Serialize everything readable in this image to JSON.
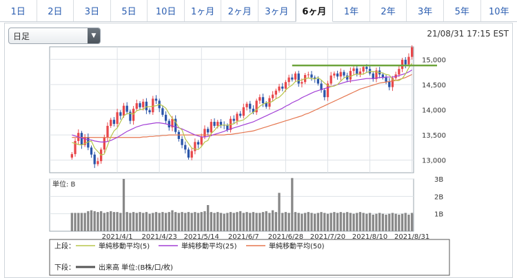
{
  "tabs": [
    "1日",
    "2日",
    "3日",
    "5日",
    "10日",
    "1ヶ月",
    "2ヶ月",
    "3ヶ月",
    "6ヶ月",
    "1年",
    "2年",
    "3年",
    "5年",
    "10年"
  ],
  "active_tab": "6ヶ月",
  "selector": {
    "value": "日足"
  },
  "timestamp": "21/08/31 17:15 EST",
  "legend": {
    "upper_label": "上段：",
    "lower_label": "下段：",
    "ma5": "単純移動平均(5)",
    "ma25": "単純移動平均(25)",
    "ma50": "単純移動平均(50)",
    "volume": "出来高 単位:(B株/口/枚)"
  },
  "colors": {
    "up": "#e8474a",
    "down": "#2b55a8",
    "ma5": "#b7c64a",
    "ma25": "#a23fd6",
    "ma50": "#e5764f",
    "resistance": "#6ca33a",
    "volume": "#888888"
  },
  "chart_data": {
    "type": "candlestick",
    "x_tick_labels": [
      "2021/4/1",
      "2021/4/23",
      "2021/5/14",
      "2021/6/7",
      "2021/6/28",
      "2021/7/20",
      "2021/8/10",
      "2021/8/31"
    ],
    "y_tick_labels": [
      "15,000",
      "14,500",
      "14,000",
      "13,500",
      "13,000"
    ],
    "ylim": [
      12750,
      15250
    ],
    "volume_unit_label": "単位: B",
    "volume_tick_labels": [
      "3B",
      "2B",
      "1B"
    ],
    "volume_ylim": [
      0,
      3
    ],
    "resistance_level": 14880,
    "close": [
      13120,
      13380,
      13540,
      13300,
      13460,
      13250,
      13110,
      12920,
      12980,
      13210,
      13450,
      13680,
      13800,
      13720,
      13950,
      13880,
      14080,
      13960,
      13780,
      14020,
      14130,
      14050,
      14160,
      13990,
      13950,
      14220,
      14180,
      14030,
      13900,
      13780,
      13650,
      13820,
      13560,
      13420,
      13300,
      13210,
      13050,
      13180,
      13360,
      13310,
      13470,
      13620,
      13550,
      13760,
      13680,
      13760,
      13700,
      13690,
      13600,
      13820,
      13780,
      13920,
      13880,
      14050,
      14120,
      14020,
      13950,
      14180,
      14250,
      14130,
      14060,
      14230,
      14300,
      14380,
      14460,
      14420,
      14550,
      14640,
      14600,
      14720,
      14520,
      14550,
      14690,
      14700,
      14640,
      14610,
      14520,
      14390,
      14250,
      14520,
      14680,
      14720,
      14660,
      14750,
      14680,
      14600,
      14770,
      14820,
      14700,
      14760,
      14850,
      14810,
      14720,
      14610,
      14780,
      14700,
      14640,
      14560,
      14450,
      14630,
      14700,
      14810,
      14990,
      14900,
      15050,
      15240
    ],
    "open": [
      13050,
      13120,
      13380,
      13540,
      13300,
      13460,
      13250,
      13110,
      12920,
      12980,
      13210,
      13450,
      13680,
      13800,
      13720,
      13950,
      13880,
      14080,
      13960,
      13780,
      14020,
      14130,
      14050,
      14160,
      13990,
      13950,
      14220,
      14180,
      14030,
      13900,
      13780,
      13650,
      13820,
      13560,
      13420,
      13300,
      13210,
      13050,
      13180,
      13360,
      13310,
      13470,
      13620,
      13550,
      13760,
      13680,
      13760,
      13700,
      13690,
      13600,
      13820,
      13780,
      13920,
      13880,
      14050,
      14120,
      14020,
      13950,
      14180,
      14250,
      14130,
      14060,
      14230,
      14300,
      14380,
      14460,
      14420,
      14550,
      14640,
      14600,
      14720,
      14520,
      14550,
      14690,
      14700,
      14640,
      14610,
      14520,
      14390,
      14250,
      14520,
      14680,
      14720,
      14660,
      14750,
      14680,
      14600,
      14770,
      14820,
      14700,
      14760,
      14850,
      14810,
      14720,
      14610,
      14780,
      14700,
      14640,
      14560,
      14450,
      14630,
      14700,
      14810,
      14990,
      14900,
      15050
    ],
    "ma5": [
      13350,
      13330,
      13310,
      13300,
      13330,
      13360,
      13380,
      13240,
      13170,
      13100,
      13120,
      13290,
      13460,
      13580,
      13640,
      13760,
      13880,
      13920,
      13930,
      13910,
      13980,
      14000,
      14010,
      14060,
      14060,
      14070,
      14080,
      14110,
      14080,
      14030,
      13920,
      13830,
      13760,
      13650,
      13600,
      13420,
      13330,
      13240,
      13220,
      13210,
      13270,
      13360,
      13390,
      13530,
      13590,
      13670,
      13690,
      13700,
      13690,
      13710,
      13720,
      13770,
      13780,
      13800,
      13850,
      13910,
      13950,
      14000,
      14070,
      14110,
      14140,
      14140,
      14170,
      14220,
      14250,
      14310,
      14390,
      14450,
      14490,
      14560,
      14580,
      14590,
      14620,
      14630,
      14620,
      14610,
      14640,
      14590,
      14530,
      14480,
      14460,
      14470,
      14500,
      14570,
      14630,
      14660,
      14660,
      14690,
      14710,
      14700,
      14710,
      14740,
      14760,
      14760,
      14750,
      14740,
      14730,
      14700,
      14690,
      14600,
      14580,
      14580,
      14620,
      14710,
      14830,
      14920
    ],
    "ma25": [
      13500,
      13480,
      13460,
      13440,
      13420,
      13410,
      13400,
      13380,
      13370,
      13360,
      13360,
      13370,
      13390,
      13420,
      13450,
      13490,
      13530,
      13570,
      13600,
      13630,
      13660,
      13680,
      13700,
      13710,
      13720,
      13730,
      13740,
      13740,
      13730,
      13720,
      13700,
      13680,
      13660,
      13640,
      13620,
      13590,
      13560,
      13530,
      13500,
      13480,
      13460,
      13460,
      13470,
      13490,
      13510,
      13530,
      13550,
      13570,
      13600,
      13620,
      13640,
      13660,
      13680,
      13700,
      13720,
      13740,
      13760,
      13790,
      13820,
      13850,
      13880,
      13910,
      13940,
      13970,
      14000,
      14030,
      14070,
      14100,
      14140,
      14170,
      14200,
      14240,
      14270,
      14300,
      14330,
      14360,
      14380,
      14400,
      14420,
      14440,
      14460,
      14480,
      14500,
      14520,
      14540,
      14560,
      14570,
      14580,
      14590,
      14600,
      14610,
      14620,
      14620,
      14620,
      14630,
      14640,
      14640,
      14650,
      14650,
      14650,
      14660,
      14680,
      14700,
      14720,
      14750,
      14790
    ],
    "ma50": [
      13450,
      13450,
      13450,
      13450,
      13450,
      13450,
      13450,
      13450,
      13450,
      13450,
      13450,
      13450,
      13450,
      13450,
      13450,
      13450,
      13450,
      13450,
      13450,
      13450,
      13450,
      13450,
      13460,
      13460,
      13470,
      13470,
      13480,
      13480,
      13490,
      13490,
      13500,
      13500,
      13500,
      13500,
      13500,
      13500,
      13500,
      13500,
      13500,
      13500,
      13500,
      13500,
      13500,
      13500,
      13500,
      13500,
      13500,
      13500,
      13510,
      13510,
      13520,
      13530,
      13540,
      13550,
      13560,
      13570,
      13580,
      13600,
      13620,
      13640,
      13660,
      13680,
      13700,
      13720,
      13740,
      13760,
      13780,
      13800,
      13820,
      13840,
      13860,
      13880,
      13910,
      13930,
      13960,
      13990,
      14020,
      14050,
      14080,
      14110,
      14140,
      14170,
      14200,
      14230,
      14260,
      14290,
      14320,
      14350,
      14380,
      14410,
      14430,
      14450,
      14470,
      14490,
      14510,
      14530,
      14540,
      14550,
      14560,
      14570,
      14580,
      14600,
      14620,
      14640,
      14670,
      14700
    ],
    "volume": [
      1.05,
      1.05,
      1.05,
      1.05,
      1.05,
      1.15,
      1.2,
      1.15,
      1.1,
      1.15,
      1.05,
      1.1,
      1.15,
      1.1,
      1.1,
      1.05,
      1.05,
      1.1,
      1.05,
      1.1,
      1.05,
      1.1,
      1.05,
      1.1,
      1.0,
      1.05,
      1.1,
      1.05,
      1.1,
      1.05,
      1.1,
      1.2,
      1.1,
      1.05,
      1.1,
      1.05,
      1.1,
      1.05,
      1.1,
      1.05,
      1.1,
      1.15,
      1.5,
      1.1,
      1.05,
      1.1,
      1.05,
      1.0,
      1.05,
      1.1,
      1.05,
      1.1,
      1.15,
      1.05,
      1.1,
      1.05,
      1.1,
      1.05,
      1.05,
      1.1,
      1.15,
      1.05,
      1.2,
      1.1,
      2.2,
      1.05,
      1.1,
      1.05,
      3.05,
      1.1,
      1.05,
      1.0,
      1.05,
      1.1,
      1.05,
      1.0,
      1.05,
      1.1,
      1.05,
      1.0,
      1.05,
      1.1,
      1.05,
      1.1,
      1.05,
      1.1,
      1.05,
      1.0,
      1.05,
      1.1,
      1.05,
      1.0,
      1.05,
      0.95,
      1.0,
      1.05,
      1.0,
      0.95,
      1.0,
      1.05,
      1.0,
      0.95,
      1.0,
      1.05,
      0.95,
      1.05
    ],
    "vol_spikes": {
      "16": 3.0
    }
  }
}
